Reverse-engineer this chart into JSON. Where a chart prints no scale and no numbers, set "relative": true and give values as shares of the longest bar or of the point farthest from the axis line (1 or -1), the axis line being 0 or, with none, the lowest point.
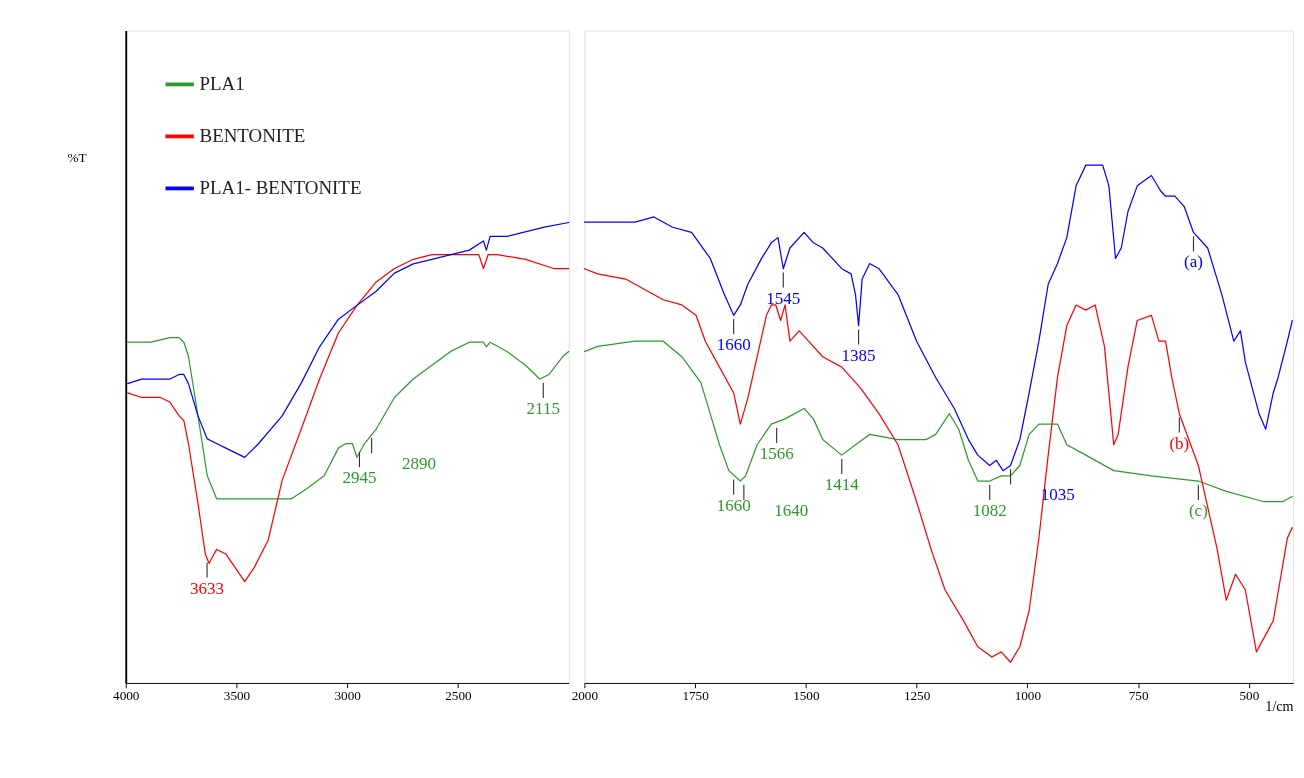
{
  "chart_data": [
    {
      "type": "line",
      "relative": true,
      "grid": false,
      "ylabel": "%T",
      "xlim": [
        4000,
        2000
      ],
      "xticks": [
        4000,
        3500,
        3000,
        2500
      ],
      "legend": "top left",
      "marker": "none",
      "line_style": "solid",
      "series": [
        {
          "name": "PLA1",
          "color": "#2e9a2e",
          "x": [
            3992,
            3886,
            3801,
            3759,
            3738,
            3717,
            3674,
            3632,
            3590,
            3505,
            3252,
            3188,
            3104,
            3040,
            3006,
            2977,
            2956,
            2922,
            2871,
            2787,
            2702,
            2618,
            2533,
            2449,
            2385,
            2372,
            2355,
            2279,
            2195,
            2131,
            2089,
            2025,
            2000
          ],
          "values": [
            0.74,
            0.74,
            0.75,
            0.75,
            0.74,
            0.71,
            0.58,
            0.45,
            0.4,
            0.4,
            0.4,
            0.42,
            0.45,
            0.51,
            0.52,
            0.52,
            0.49,
            0.52,
            0.55,
            0.62,
            0.66,
            0.69,
            0.72,
            0.74,
            0.74,
            0.73,
            0.74,
            0.72,
            0.69,
            0.66,
            0.67,
            0.71,
            0.72
          ]
        },
        {
          "name": "BENTONITE",
          "color": "#ff0000",
          "x": [
            3992,
            3928,
            3844,
            3801,
            3759,
            3738,
            3717,
            3674,
            3641,
            3624,
            3590,
            3548,
            3505,
            3463,
            3421,
            3357,
            3294,
            3209,
            3125,
            3040,
            2956,
            2871,
            2787,
            2702,
            2618,
            2533,
            2406,
            2385,
            2364,
            2322,
            2195,
            2068,
            2000
          ],
          "values": [
            0.63,
            0.62,
            0.62,
            0.61,
            0.58,
            0.57,
            0.52,
            0.39,
            0.28,
            0.26,
            0.29,
            0.28,
            0.25,
            0.22,
            0.25,
            0.31,
            0.44,
            0.55,
            0.66,
            0.76,
            0.82,
            0.87,
            0.9,
            0.92,
            0.93,
            0.93,
            0.93,
            0.9,
            0.93,
            0.93,
            0.92,
            0.9,
            0.9
          ]
        },
        {
          "name": "PLA1- BENTONITE",
          "color": "#0000ff",
          "x": [
            3992,
            3928,
            3844,
            3801,
            3759,
            3738,
            3717,
            3674,
            3632,
            3590,
            3548,
            3463,
            3400,
            3294,
            3209,
            3125,
            3040,
            2956,
            2871,
            2787,
            2702,
            2618,
            2449,
            2385,
            2372,
            2355,
            2279,
            2110,
            2000
          ],
          "values": [
            0.65,
            0.66,
            0.66,
            0.66,
            0.67,
            0.67,
            0.65,
            0.58,
            0.53,
            0.52,
            0.51,
            0.49,
            0.52,
            0.58,
            0.65,
            0.73,
            0.79,
            0.82,
            0.85,
            0.89,
            0.91,
            0.92,
            0.94,
            0.96,
            0.94,
            0.97,
            0.97,
            0.99,
            1.0
          ]
        }
      ],
      "annotations": [
        {
          "text": "3633",
          "x": 3633,
          "y": 0.27
        },
        {
          "text": "2945",
          "x": 2945,
          "y": 0.51
        },
        {
          "text": "2890",
          "x": 2890,
          "y": 0.54
        },
        {
          "text": "2115",
          "x": 2115,
          "y": 0.66
        }
      ]
    },
    {
      "type": "line",
      "relative": true,
      "grid": false,
      "xlabel": "1/cm",
      "xlim": [
        2000,
        400
      ],
      "xticks": [
        2000,
        1750,
        1500,
        1250,
        1000,
        750,
        500
      ],
      "marker": "none",
      "line_style": "solid",
      "series": [
        {
          "color": "#2e9a2e",
          "x": [
            2000,
            1970,
            1886,
            1822,
            1780,
            1737,
            1716,
            1695,
            1674,
            1648,
            1636,
            1610,
            1578,
            1547,
            1504,
            1483,
            1462,
            1419,
            1388,
            1356,
            1292,
            1229,
            1207,
            1176,
            1155,
            1133,
            1112,
            1085,
            1059,
            1038,
            1017,
            996,
            974,
            932,
            911,
            868,
            805,
            720,
            614,
            551,
            466,
            424,
            402
          ],
          "values": [
            0.64,
            0.65,
            0.66,
            0.66,
            0.63,
            0.58,
            0.52,
            0.46,
            0.41,
            0.39,
            0.4,
            0.46,
            0.5,
            0.51,
            0.53,
            0.51,
            0.47,
            0.44,
            0.46,
            0.48,
            0.47,
            0.47,
            0.48,
            0.52,
            0.49,
            0.43,
            0.39,
            0.39,
            0.4,
            0.4,
            0.42,
            0.48,
            0.5,
            0.5,
            0.46,
            0.44,
            0.41,
            0.4,
            0.39,
            0.37,
            0.35,
            0.35,
            0.36
          ]
        },
        {
          "color": "#ff0000",
          "x": [
            2000,
            1970,
            1907,
            1864,
            1822,
            1780,
            1748,
            1727,
            1695,
            1663,
            1648,
            1631,
            1610,
            1589,
            1578,
            1568,
            1557,
            1547,
            1536,
            1515,
            1494,
            1462,
            1419,
            1377,
            1335,
            1292,
            1250,
            1218,
            1186,
            1144,
            1112,
            1080,
            1059,
            1038,
            1017,
            996,
            974,
            953,
            932,
            911,
            890,
            868,
            847,
            826,
            805,
            795,
            773,
            752,
            720,
            703,
            688,
            674,
            657,
            614,
            572,
            551,
            530,
            508,
            483,
            445,
            413,
            402
          ],
          "values": [
            0.8,
            0.79,
            0.78,
            0.76,
            0.74,
            0.73,
            0.71,
            0.66,
            0.61,
            0.56,
            0.5,
            0.55,
            0.63,
            0.71,
            0.73,
            0.73,
            0.7,
            0.73,
            0.66,
            0.68,
            0.66,
            0.63,
            0.61,
            0.57,
            0.52,
            0.46,
            0.35,
            0.26,
            0.18,
            0.12,
            0.07,
            0.05,
            0.06,
            0.04,
            0.07,
            0.14,
            0.28,
            0.44,
            0.59,
            0.69,
            0.73,
            0.72,
            0.73,
            0.65,
            0.46,
            0.48,
            0.61,
            0.7,
            0.71,
            0.66,
            0.66,
            0.59,
            0.52,
            0.42,
            0.26,
            0.16,
            0.21,
            0.18,
            0.06,
            0.12,
            0.28,
            0.3
          ]
        },
        {
          "color": "#0000ff",
          "x": [
            2000,
            1970,
            1886,
            1843,
            1801,
            1758,
            1716,
            1684,
            1663,
            1648,
            1631,
            1600,
            1578,
            1563,
            1551,
            1536,
            1504,
            1483,
            1462,
            1419,
            1398,
            1388,
            1381,
            1373,
            1356,
            1335,
            1292,
            1250,
            1207,
            1165,
            1133,
            1112,
            1085,
            1070,
            1055,
            1038,
            1017,
            996,
            974,
            953,
            932,
            911,
            890,
            868,
            847,
            830,
            816,
            801,
            788,
            773,
            752,
            720,
            699,
            688,
            667,
            646,
            625,
            593,
            561,
            534,
            519,
            508,
            477,
            462,
            445,
            434,
            413,
            402
          ],
          "values": [
            0.89,
            0.89,
            0.89,
            0.9,
            0.88,
            0.87,
            0.82,
            0.75,
            0.71,
            0.73,
            0.77,
            0.82,
            0.85,
            0.86,
            0.8,
            0.84,
            0.87,
            0.85,
            0.84,
            0.8,
            0.79,
            0.75,
            0.69,
            0.78,
            0.81,
            0.8,
            0.75,
            0.66,
            0.59,
            0.53,
            0.47,
            0.44,
            0.42,
            0.43,
            0.41,
            0.42,
            0.47,
            0.56,
            0.66,
            0.77,
            0.81,
            0.86,
            0.96,
            1.0,
            1.0,
            1.0,
            0.96,
            0.82,
            0.84,
            0.91,
            0.96,
            0.98,
            0.95,
            0.94,
            0.94,
            0.92,
            0.87,
            0.84,
            0.75,
            0.66,
            0.68,
            0.62,
            0.52,
            0.49,
            0.56,
            0.59,
            0.66,
            0.7
          ]
        }
      ],
      "annotations": [
        {
          "text": "1660",
          "x": 1663,
          "y": 0.71
        },
        {
          "text": "1545",
          "x": 1551,
          "y": 0.8
        },
        {
          "text": "1385",
          "x": 1381,
          "y": 0.69
        },
        {
          "text": "1660",
          "x": 1663,
          "y": 0.4
        },
        {
          "text": "1640",
          "x": 1640,
          "y": 0.39
        },
        {
          "text": "1566",
          "x": 1566,
          "y": 0.5
        },
        {
          "text": "1414",
          "x": 1419,
          "y": 0.44
        },
        {
          "text": "1082",
          "x": 1085,
          "y": 0.39
        },
        {
          "text": "1035",
          "x": 1038,
          "y": 0.42
        },
        {
          "text": "(a)",
          "x": 625,
          "y": 0.87
        },
        {
          "text": "(b)",
          "x": 657,
          "y": 0.52
        },
        {
          "text": "(c)",
          "x": 614,
          "y": 0.39
        }
      ]
    }
  ]
}
